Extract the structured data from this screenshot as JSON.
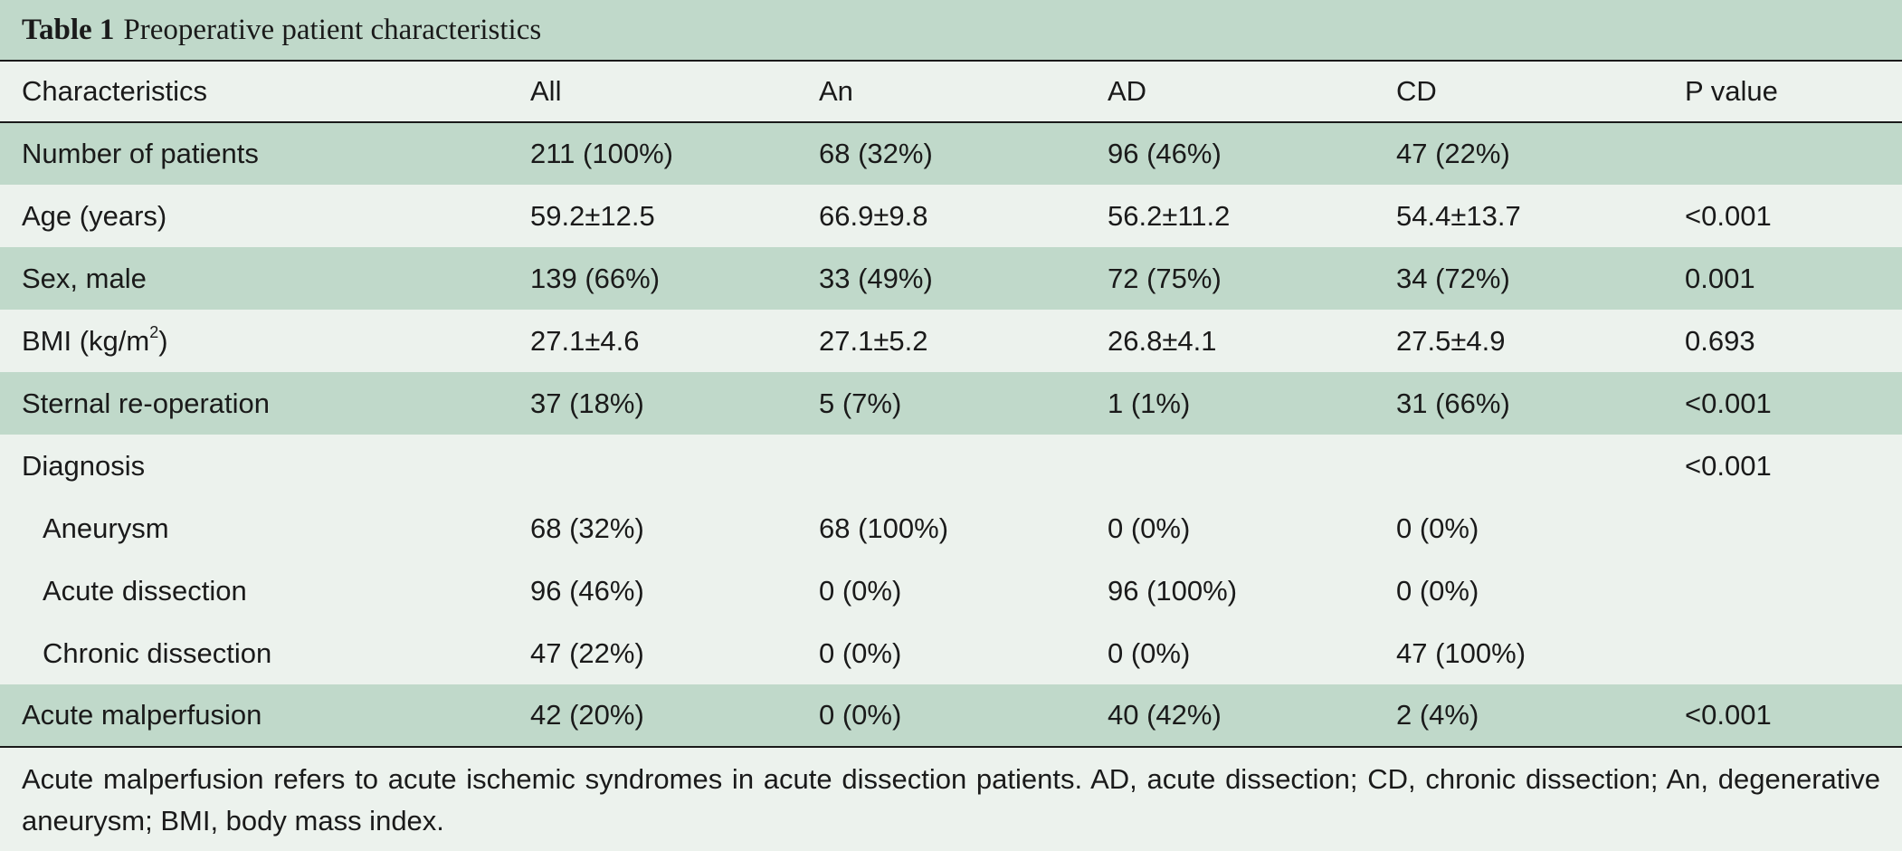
{
  "caption": {
    "lead": "Table 1",
    "title": "Preoperative patient characteristics"
  },
  "columns": [
    "Characteristics",
    "All",
    "An",
    "AD",
    "CD",
    "P value"
  ],
  "rows": [
    {
      "label": "Number of patients",
      "all": "211 (100%)",
      "an": "68 (32%)",
      "ad": "96 (46%)",
      "cd": "47 (22%)",
      "p": ""
    },
    {
      "label": "Age (years)",
      "all": "59.2±12.5",
      "an": "66.9±9.8",
      "ad": "56.2±11.2",
      "cd": "54.4±13.7",
      "p": "<0.001"
    },
    {
      "label": "Sex, male",
      "all": "139 (66%)",
      "an": "33 (49%)",
      "ad": "72 (75%)",
      "cd": "34 (72%)",
      "p": "0.001"
    },
    {
      "label": "BMI (kg/m",
      "label_sup": "2",
      "label_suffix": ")",
      "all": "27.1±4.6",
      "an": "27.1±5.2",
      "ad": "26.8±4.1",
      "cd": "27.5±4.9",
      "p": "0.693"
    },
    {
      "label": "Sternal re-operation",
      "all": "37 (18%)",
      "an": "5 (7%)",
      "ad": "1 (1%)",
      "cd": "31 (66%)",
      "p": "<0.001"
    },
    {
      "label": "Diagnosis",
      "all": "",
      "an": "",
      "ad": "",
      "cd": "",
      "p": "<0.001"
    },
    {
      "label": "Aneurysm",
      "all": "68 (32%)",
      "an": "68 (100%)",
      "ad": "0 (0%)",
      "cd": "0 (0%)",
      "p": ""
    },
    {
      "label": "Acute dissection",
      "all": "96 (46%)",
      "an": "0 (0%)",
      "ad": "96 (100%)",
      "cd": "0 (0%)",
      "p": ""
    },
    {
      "label": "Chronic dissection",
      "all": "47 (22%)",
      "an": "0 (0%)",
      "ad": "0 (0%)",
      "cd": "47 (100%)",
      "p": ""
    },
    {
      "label": "Acute malperfusion",
      "all": "42 (20%)",
      "an": "0 (0%)",
      "ad": "40 (42%)",
      "cd": "2 (4%)",
      "p": "<0.001"
    }
  ],
  "footnote": "Acute malperfusion refers to acute ischemic syndromes in acute dissection patients. AD, acute dissection; CD, chronic dissection; An, degenerative aneurysm; BMI, body mass index.",
  "colors": {
    "shaded_row": "#c0d9ca",
    "plain_row": "#ecf2ed",
    "rule": "#1a1a1a"
  }
}
